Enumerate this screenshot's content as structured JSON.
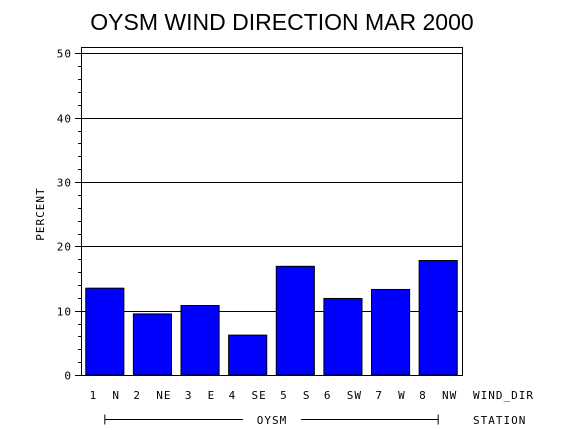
{
  "chart_data": {
    "type": "bar",
    "title": "OYSM WIND DIRECTION MAR 2000",
    "ylabel": "PERCENT",
    "xlabel": "WIND_DIR",
    "group_axis_label": "STATION",
    "group_label": "OYSM",
    "categories": [
      "1 N",
      "2 NE",
      "3 E",
      "4 SE",
      "5 S",
      "6 SW",
      "7 W",
      "8 NW"
    ],
    "values": [
      13.5,
      9.5,
      10.8,
      6.2,
      16.9,
      11.9,
      13.3,
      17.8
    ],
    "ylim": [
      0,
      51
    ],
    "yticks": [
      0,
      10,
      20,
      30,
      40,
      50
    ],
    "grid": true,
    "bar_color": "#0000ff"
  }
}
